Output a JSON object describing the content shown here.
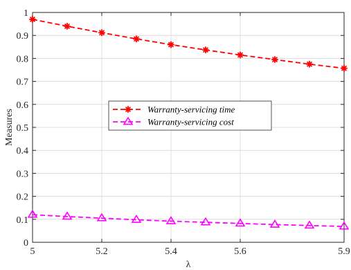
{
  "chart_data": {
    "type": "line",
    "xlabel": "λ",
    "ylabel": "Measures",
    "xlim": [
      5,
      5.9
    ],
    "ylim": [
      0,
      1
    ],
    "x_ticks": [
      5,
      5.2,
      5.4,
      5.6,
      5.9
    ],
    "x_tick_labels": [
      "5",
      "5.2",
      "5.4",
      "5.6",
      "5.9"
    ],
    "y_ticks": [
      0,
      0.1,
      0.2,
      0.3,
      0.4,
      0.5,
      0.6,
      0.7,
      0.8,
      0.9,
      1
    ],
    "y_tick_labels": [
      "0",
      "0.1",
      "0.2",
      "0.3",
      "0.4",
      "0.5",
      "0.6",
      "0.7",
      "0.8",
      "0.9",
      "1"
    ],
    "grid": true,
    "legend_position": "center-left",
    "x": [
      5.0,
      5.1,
      5.2,
      5.3,
      5.4,
      5.5,
      5.6,
      5.7,
      5.8,
      5.9
    ],
    "series": [
      {
        "name": "Warranty-servicing time",
        "color": "#ff0000",
        "marker": "asterisk",
        "line_style": "dashed",
        "values": [
          0.97,
          0.94,
          0.912,
          0.885,
          0.86,
          0.837,
          0.815,
          0.795,
          0.775,
          0.757
        ]
      },
      {
        "name": "Warranty-servicing cost",
        "color": "#ff00ff",
        "marker": "triangle",
        "line_style": "dashed",
        "values": [
          0.12,
          0.112,
          0.105,
          0.098,
          0.092,
          0.087,
          0.082,
          0.077,
          0.073,
          0.069
        ]
      }
    ]
  }
}
